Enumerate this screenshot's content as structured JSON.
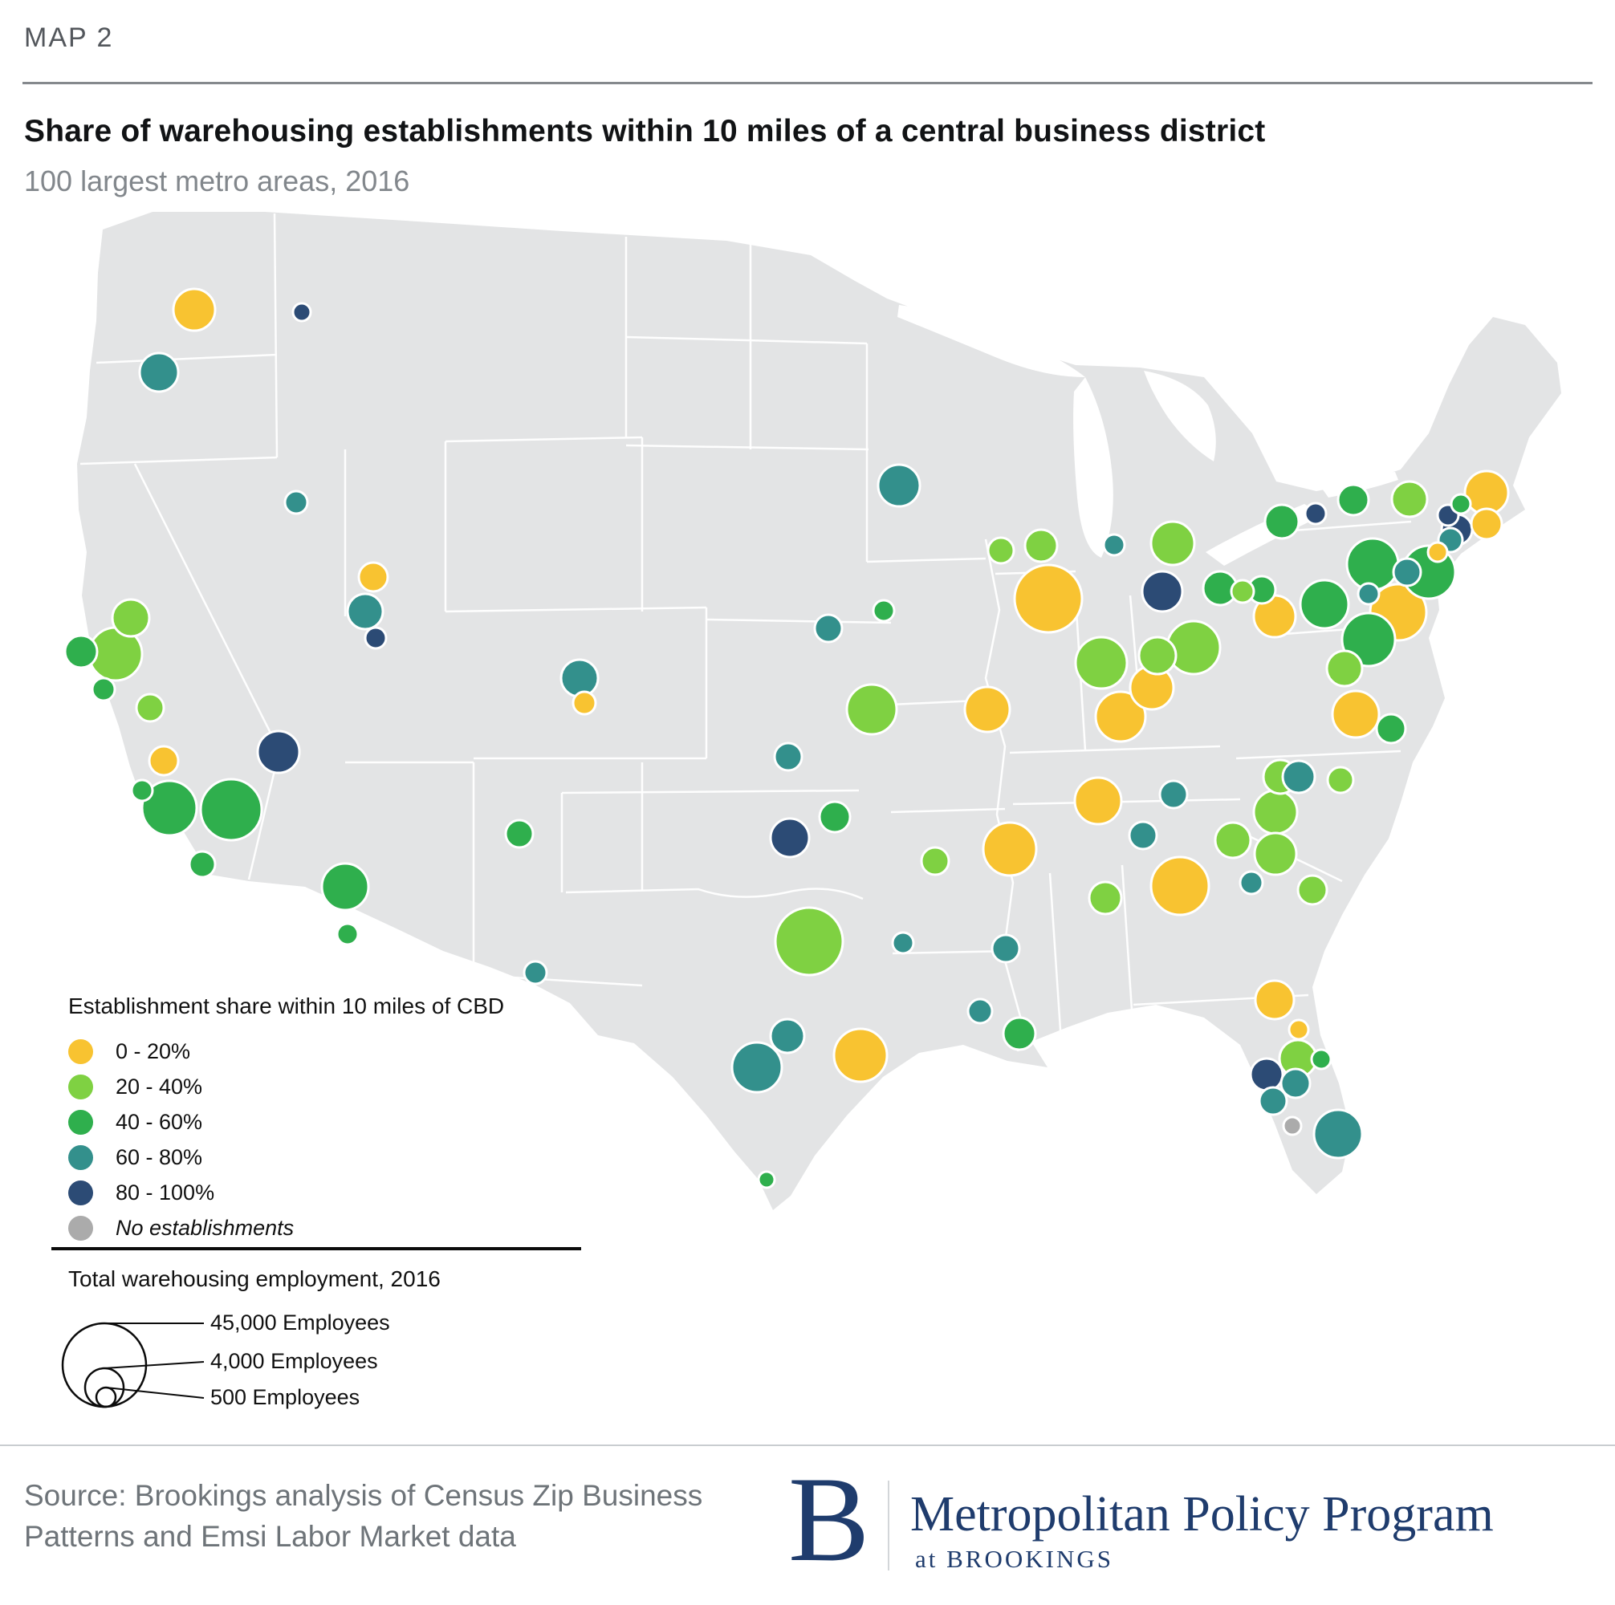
{
  "header": {
    "kicker": "MAP 2",
    "title": "Share of warehousing establishments within 10 miles of a central business district",
    "subtitle": "100 largest metro areas, 2016"
  },
  "legend": {
    "title": "Establishment share within 10 miles of CBD",
    "items": [
      {
        "key": "y",
        "label": "0 - 20%"
      },
      {
        "key": "lg",
        "label": "20 - 40%"
      },
      {
        "key": "g",
        "label": "40 - 60%"
      },
      {
        "key": "t",
        "label": "60 - 80%"
      },
      {
        "key": "n",
        "label": "80 - 100%"
      },
      {
        "key": "x",
        "label": "No establishments",
        "italic": true
      }
    ]
  },
  "size_legend": {
    "title": "Total warehousing employment, 2016",
    "items": [
      {
        "label": "45,000 Employees",
        "r": 52
      },
      {
        "label": "4,000 Employees",
        "r": 24
      },
      {
        "label": "500 Employees",
        "r": 12
      }
    ]
  },
  "footer": {
    "source_line1": "Source: Brookings analysis of Census Zip Business",
    "source_line2": "Patterns and Emsi Labor Market data",
    "logo_letter": "B",
    "logo_title": "Metropolitan Policy Program",
    "logo_subtitle": "at BROOKINGS"
  },
  "map": {
    "land_color": "#e3e4e5",
    "state_line_color": "#ffffff",
    "categories": {
      "y": {
        "label": "0 - 20%",
        "color": "#f8c331"
      },
      "lg": {
        "label": "20 - 40%",
        "color": "#7fd142"
      },
      "g": {
        "label": "40 - 60%",
        "color": "#2faf4d"
      },
      "t": {
        "label": "60 - 80%",
        "color": "#33908c"
      },
      "n": {
        "label": "80 - 100%",
        "color": "#2c4b75"
      },
      "x": {
        "label": "No establishments",
        "color": "#ababab"
      }
    },
    "bubble_format": [
      "x",
      "y",
      "r",
      "category"
    ],
    "bubbles": [
      [
        242,
        386,
        26,
        "y"
      ],
      [
        376,
        389,
        11,
        "n"
      ],
      [
        198,
        464,
        24,
        "t"
      ],
      [
        369,
        626,
        14,
        "t"
      ],
      [
        465,
        719,
        18,
        "y"
      ],
      [
        455,
        762,
        22,
        "t"
      ],
      [
        468,
        795,
        13,
        "n"
      ],
      [
        163,
        770,
        23,
        "lg"
      ],
      [
        101,
        812,
        20,
        "g"
      ],
      [
        144,
        815,
        33,
        "lg"
      ],
      [
        129,
        859,
        14,
        "g"
      ],
      [
        187,
        882,
        17,
        "lg"
      ],
      [
        204,
        948,
        18,
        "y"
      ],
      [
        347,
        937,
        26,
        "n"
      ],
      [
        177,
        985,
        13,
        "g"
      ],
      [
        211,
        1007,
        34,
        "g"
      ],
      [
        288,
        1009,
        38,
        "g"
      ],
      [
        252,
        1077,
        16,
        "g"
      ],
      [
        430,
        1105,
        29,
        "g"
      ],
      [
        433,
        1164,
        13,
        "g"
      ],
      [
        722,
        845,
        23,
        "t"
      ],
      [
        728,
        876,
        14,
        "y"
      ],
      [
        647,
        1039,
        17,
        "g"
      ],
      [
        667,
        1212,
        14,
        "t"
      ],
      [
        984,
        1044,
        24,
        "n"
      ],
      [
        1040,
        1018,
        19,
        "g"
      ],
      [
        982,
        943,
        17,
        "t"
      ],
      [
        1086,
        884,
        31,
        "lg"
      ],
      [
        1032,
        783,
        17,
        "t"
      ],
      [
        1101,
        761,
        13,
        "g"
      ],
      [
        1120,
        605,
        26,
        "t"
      ],
      [
        1247,
        686,
        16,
        "lg"
      ],
      [
        1297,
        680,
        20,
        "lg"
      ],
      [
        1388,
        679,
        13,
        "t"
      ],
      [
        1461,
        677,
        27,
        "lg"
      ],
      [
        1306,
        746,
        42,
        "y"
      ],
      [
        1230,
        884,
        28,
        "y"
      ],
      [
        1372,
        826,
        32,
        "lg"
      ],
      [
        1442,
        817,
        23,
        "lg"
      ],
      [
        1487,
        807,
        33,
        "lg"
      ],
      [
        1435,
        857,
        27,
        "y"
      ],
      [
        1396,
        893,
        31,
        "y"
      ],
      [
        1448,
        737,
        25,
        "n"
      ],
      [
        1520,
        733,
        21,
        "g"
      ],
      [
        1548,
        737,
        14,
        "lg"
      ],
      [
        1572,
        735,
        17,
        "g"
      ],
      [
        1588,
        768,
        26,
        "y"
      ],
      [
        1597,
        650,
        21,
        "g"
      ],
      [
        1639,
        640,
        13,
        "n"
      ],
      [
        1686,
        623,
        19,
        "g"
      ],
      [
        1756,
        622,
        22,
        "lg"
      ],
      [
        1852,
        614,
        27,
        "y"
      ],
      [
        1820,
        628,
        12,
        "g"
      ],
      [
        1804,
        642,
        13,
        "n"
      ],
      [
        1815,
        660,
        19,
        "n"
      ],
      [
        1807,
        673,
        15,
        "t"
      ],
      [
        1852,
        653,
        19,
        "y"
      ],
      [
        1791,
        688,
        12,
        "y"
      ],
      [
        1780,
        713,
        33,
        "g"
      ],
      [
        1753,
        713,
        17,
        "t"
      ],
      [
        1710,
        703,
        32,
        "g"
      ],
      [
        1650,
        753,
        30,
        "g"
      ],
      [
        1705,
        740,
        13,
        "t"
      ],
      [
        1742,
        763,
        35,
        "y"
      ],
      [
        1705,
        797,
        33,
        "g"
      ],
      [
        1675,
        833,
        22,
        "lg"
      ],
      [
        1689,
        890,
        29,
        "y"
      ],
      [
        1733,
        908,
        18,
        "g"
      ],
      [
        1595,
        968,
        21,
        "lg"
      ],
      [
        1618,
        968,
        20,
        "t"
      ],
      [
        1670,
        972,
        16,
        "lg"
      ],
      [
        1589,
        1012,
        27,
        "lg"
      ],
      [
        1536,
        1047,
        22,
        "lg"
      ],
      [
        1589,
        1064,
        26,
        "lg"
      ],
      [
        1559,
        1100,
        14,
        "t"
      ],
      [
        1635,
        1109,
        18,
        "lg"
      ],
      [
        1470,
        1104,
        36,
        "y"
      ],
      [
        1462,
        990,
        17,
        "t"
      ],
      [
        1368,
        998,
        29,
        "y"
      ],
      [
        1424,
        1041,
        17,
        "t"
      ],
      [
        1377,
        1119,
        20,
        "lg"
      ],
      [
        1258,
        1058,
        33,
        "y"
      ],
      [
        1165,
        1073,
        17,
        "lg"
      ],
      [
        1253,
        1182,
        17,
        "t"
      ],
      [
        1125,
        1175,
        13,
        "t"
      ],
      [
        1221,
        1260,
        15,
        "t"
      ],
      [
        1270,
        1288,
        20,
        "g"
      ],
      [
        955,
        1470,
        10,
        "g"
      ],
      [
        943,
        1330,
        31,
        "t"
      ],
      [
        981,
        1291,
        21,
        "t"
      ],
      [
        1072,
        1315,
        33,
        "y"
      ],
      [
        1008,
        1173,
        42,
        "lg"
      ],
      [
        1588,
        1246,
        24,
        "y"
      ],
      [
        1618,
        1283,
        12,
        "y"
      ],
      [
        1617,
        1319,
        23,
        "lg"
      ],
      [
        1646,
        1320,
        12,
        "g"
      ],
      [
        1578,
        1339,
        20,
        "n"
      ],
      [
        1614,
        1350,
        18,
        "t"
      ],
      [
        1586,
        1372,
        17,
        "t"
      ],
      [
        1610,
        1403,
        11,
        "x"
      ],
      [
        1667,
        1413,
        30,
        "t"
      ]
    ]
  }
}
